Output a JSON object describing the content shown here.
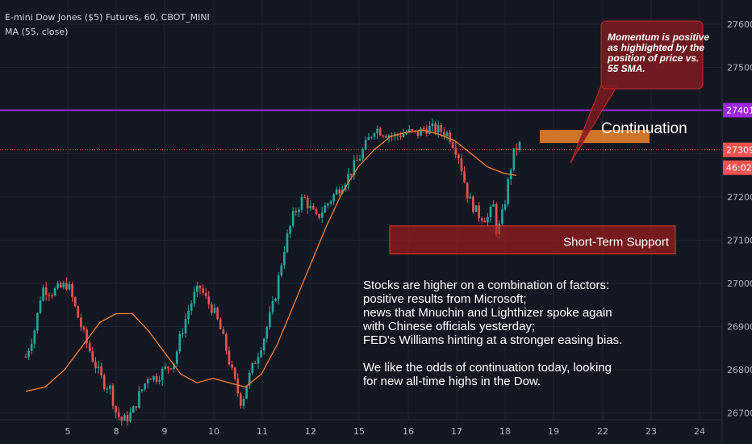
{
  "header": {
    "title": "E-mini Dow Jones ($5) Futures, 60, CBOT_MINI",
    "indicator": "MA (55, close)"
  },
  "colors": {
    "background": "#131722",
    "up": "#26a69a",
    "down": "#ef5350",
    "ma": "#f57f32",
    "resistance": "#9c27e0",
    "support_fill": "#b71c1c",
    "continuation_fill": "#f0862b",
    "callout_fill": "#7a1a20",
    "price_label": "#ef5350",
    "text": "#ffffff",
    "axis_text": "#b2b5be"
  },
  "axis": {
    "y_ticks": [
      27600,
      27500,
      27400,
      27300,
      27200,
      27100,
      27000,
      26900,
      26800,
      26700
    ],
    "x_ticks": [
      "5",
      "8",
      "9",
      "10",
      "11",
      "12",
      "15",
      "16",
      "17",
      "18",
      "19",
      "22",
      "23",
      "24"
    ]
  },
  "price_labels": {
    "resistance": "27401",
    "last_price": "27309",
    "countdown": "46:02"
  },
  "annotations": {
    "callout": "Momentum is positive as highlighted by the position of price vs. 55 SMA.",
    "continuation": "Continuation",
    "support": "Short-Term Support",
    "commentary": [
      "Stocks are higher on a combination of factors:",
      "positive results from Microsoft;",
      "news that Mnuchin and Lighthizer spoke again",
      "with Chinese officials yesterday;",
      "FED's Williams hinting at a stronger easing bias.",
      "",
      "We like the odds of continuation today, looking",
      "for new all-time highs in the Dow."
    ]
  },
  "chart_data": {
    "type": "candlestick",
    "symbol": "CBOT_MINI",
    "timeframe": "60",
    "ylim": [
      26630,
      27660
    ],
    "x_range": [
      4.2,
      24.6
    ],
    "resistance_level": 27401,
    "last_price": 27309,
    "continuation_zone": [
      27325,
      27355
    ],
    "support_zone": [
      27068,
      27133
    ],
    "price_path": [
      [
        4.2,
        26830
      ],
      [
        4.5,
        26900
      ],
      [
        4.7,
        26990
      ],
      [
        5.0,
        26980
      ],
      [
        5.3,
        26990
      ],
      [
        5.5,
        27000
      ],
      [
        5.7,
        26950
      ],
      [
        6.0,
        26880
      ],
      [
        6.3,
        26820
      ],
      [
        6.6,
        26770
      ],
      [
        6.8,
        26760
      ],
      [
        7.0,
        26700
      ],
      [
        7.2,
        26680
      ],
      [
        7.5,
        26700
      ],
      [
        7.7,
        26740
      ],
      [
        7.9,
        26770
      ],
      [
        8.0,
        26790
      ],
      [
        8.2,
        26780
      ],
      [
        8.5,
        26800
      ],
      [
        8.8,
        26820
      ],
      [
        9.0,
        26880
      ],
      [
        9.2,
        26930
      ],
      [
        9.4,
        26970
      ],
      [
        9.6,
        26990
      ],
      [
        9.8,
        26960
      ],
      [
        10.0,
        26940
      ],
      [
        10.2,
        26900
      ],
      [
        10.4,
        26850
      ],
      [
        10.6,
        26790
      ],
      [
        10.8,
        26740
      ],
      [
        10.9,
        26720
      ],
      [
        11.0,
        26760
      ],
      [
        11.3,
        26820
      ],
      [
        11.6,
        26880
      ],
      [
        11.9,
        26960
      ],
      [
        12.2,
        27080
      ],
      [
        12.5,
        27160
      ],
      [
        12.8,
        27200
      ],
      [
        13.2,
        27150
      ],
      [
        13.5,
        27180
      ],
      [
        13.8,
        27210
      ],
      [
        14.2,
        27250
      ],
      [
        14.6,
        27300
      ],
      [
        15.0,
        27360
      ],
      [
        15.3,
        27350
      ],
      [
        15.6,
        27340
      ],
      [
        16.0,
        27350
      ],
      [
        16.3,
        27345
      ],
      [
        16.6,
        27360
      ],
      [
        17.0,
        27355
      ],
      [
        17.3,
        27345
      ],
      [
        17.6,
        27300
      ],
      [
        17.9,
        27200
      ],
      [
        18.2,
        27160
      ],
      [
        18.5,
        27150
      ],
      [
        18.7,
        27180
      ],
      [
        18.8,
        27110
      ],
      [
        19.0,
        27170
      ],
      [
        19.2,
        27260
      ],
      [
        19.35,
        27310
      ],
      [
        19.5,
        27320
      ]
    ],
    "ma_path": [
      [
        4.2,
        26750
      ],
      [
        4.8,
        26760
      ],
      [
        5.4,
        26800
      ],
      [
        6.0,
        26860
      ],
      [
        6.5,
        26910
      ],
      [
        7.0,
        26930
      ],
      [
        7.5,
        26930
      ],
      [
        8.0,
        26890
      ],
      [
        8.5,
        26840
      ],
      [
        9.0,
        26790
      ],
      [
        9.5,
        26770
      ],
      [
        10.0,
        26780
      ],
      [
        10.5,
        26770
      ],
      [
        11.0,
        26760
      ],
      [
        11.5,
        26790
      ],
      [
        12.0,
        26860
      ],
      [
        12.5,
        26950
      ],
      [
        13.0,
        27040
      ],
      [
        13.5,
        27130
      ],
      [
        14.0,
        27210
      ],
      [
        14.5,
        27270
      ],
      [
        15.0,
        27310
      ],
      [
        15.5,
        27340
      ],
      [
        16.0,
        27350
      ],
      [
        16.5,
        27355
      ],
      [
        17.0,
        27345
      ],
      [
        17.5,
        27330
      ],
      [
        18.0,
        27300
      ],
      [
        18.5,
        27270
      ],
      [
        19.0,
        27255
      ],
      [
        19.4,
        27250
      ]
    ]
  }
}
